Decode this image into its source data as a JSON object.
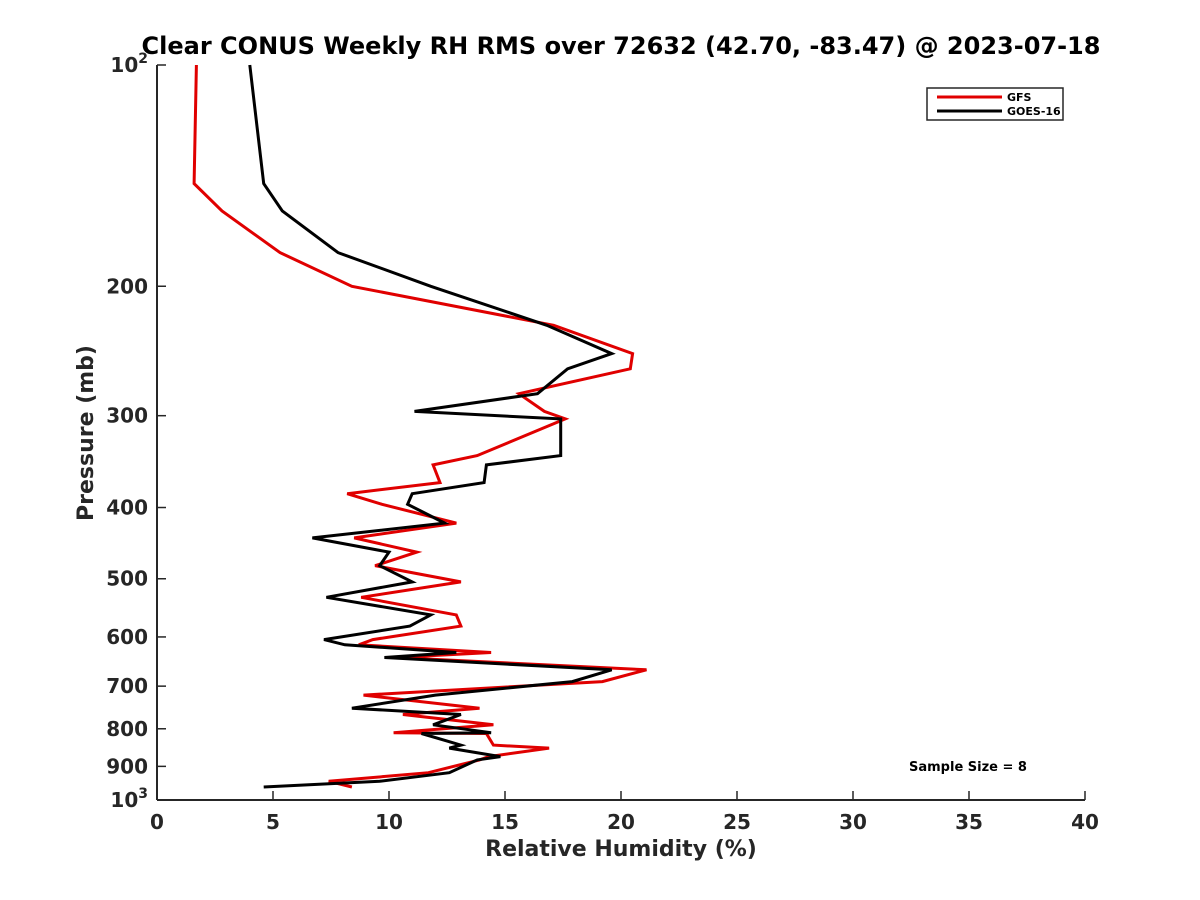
{
  "chart_data": {
    "type": "line",
    "title": "Clear CONUS Weekly RH RMS over 72632 (42.70, -83.47) @ 2023-07-18",
    "xlabel": "Relative Humidity (%)",
    "ylabel": "Pressure (mb)",
    "xlim": [
      0,
      40
    ],
    "ylim": [
      100,
      1000
    ],
    "y_scale": "log",
    "y_reversed": true,
    "grid": false,
    "x_ticks": [
      "0",
      "5",
      "10",
      "15",
      "20",
      "25",
      "30",
      "35",
      "40"
    ],
    "y_ticks": [
      {
        "value": 100,
        "base": "10",
        "exp": "2"
      },
      {
        "value": 200,
        "label": "200"
      },
      {
        "value": 300,
        "label": "300"
      },
      {
        "value": 400,
        "label": "400"
      },
      {
        "value": 500,
        "label": "500"
      },
      {
        "value": 600,
        "label": "600"
      },
      {
        "value": 700,
        "label": "700"
      },
      {
        "value": 800,
        "label": "800"
      },
      {
        "value": 900,
        "label": "900"
      },
      {
        "value": 1000,
        "base": "10",
        "exp": "3"
      }
    ],
    "legend_position": "top-right",
    "annotation": "Sample Size = 8",
    "series": [
      {
        "name": "GFS",
        "color": "#e00000",
        "x": [
          1.7,
          1.6,
          2.8,
          5.3,
          8.4,
          17.1,
          20.5,
          20.4,
          15.6,
          16.7,
          17.6,
          13.8,
          11.9,
          12.2,
          8.2,
          9.7,
          12.9,
          8.5,
          11.2,
          9.4,
          13.1,
          8.8,
          12.9,
          13.1,
          9.3,
          8.7,
          14.4,
          10.3,
          21.1,
          19.2,
          8.9,
          13.9,
          10.6,
          14.5,
          10.2,
          14.2,
          14.5,
          16.9,
          14.3,
          13.9,
          11.7,
          7.4,
          8.4
        ],
        "y": [
          100,
          145,
          158,
          180,
          200,
          226,
          247,
          259,
          280,
          296,
          303,
          340,
          350,
          370,
          383,
          396,
          420,
          440,
          460,
          480,
          505,
          530,
          560,
          580,
          605,
          615,
          630,
          640,
          665,
          690,
          720,
          750,
          765,
          790,
          810,
          812,
          842,
          850,
          873,
          882,
          918,
          943,
          960
        ]
      },
      {
        "name": "GOES-16",
        "color": "#000000",
        "x": [
          4.0,
          4.6,
          5.4,
          7.8,
          11.8,
          16.8,
          19.6,
          17.7,
          16.4,
          11.1,
          17.4,
          17.4,
          14.2,
          14.1,
          11.0,
          10.8,
          12.4,
          6.7,
          10.0,
          9.6,
          11.0,
          7.3,
          11.8,
          10.9,
          7.2,
          8.1,
          12.9,
          9.8,
          19.6,
          17.9,
          12.0,
          8.4,
          13.1,
          11.9,
          14.4,
          11.4,
          13.1,
          12.6,
          14.8,
          13.8,
          12.6,
          9.6,
          4.6,
          6.0
        ]
      }
    ]
  }
}
